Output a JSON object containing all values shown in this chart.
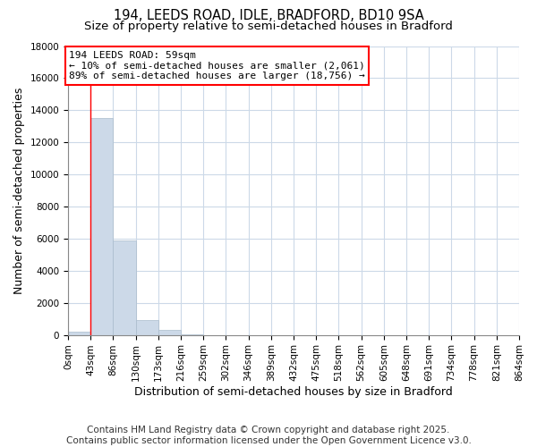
{
  "title_line1": "194, LEEDS ROAD, IDLE, BRADFORD, BD10 9SA",
  "title_line2": "Size of property relative to semi-detached houses in Bradford",
  "xlabel": "Distribution of semi-detached houses by size in Bradford",
  "ylabel": "Number of semi-detached properties",
  "bar_values": [
    200,
    13500,
    5900,
    950,
    300,
    50,
    0,
    0,
    0,
    0,
    0,
    0,
    0,
    0,
    0,
    0,
    0,
    0,
    0,
    0
  ],
  "bin_labels": [
    "0sqm",
    "43sqm",
    "86sqm",
    "130sqm",
    "173sqm",
    "216sqm",
    "259sqm",
    "302sqm",
    "346sqm",
    "389sqm",
    "432sqm",
    "475sqm",
    "518sqm",
    "562sqm",
    "605sqm",
    "648sqm",
    "691sqm",
    "734sqm",
    "778sqm",
    "821sqm",
    "864sqm"
  ],
  "bar_color": "#ccd9e8",
  "bar_edge_color": "#aabccc",
  "vline_x": 1,
  "vline_color": "red",
  "annotation_text": "194 LEEDS ROAD: 59sqm\n← 10% of semi-detached houses are smaller (2,061)\n89% of semi-detached houses are larger (18,756) →",
  "annotation_box_color": "white",
  "annotation_box_edge": "red",
  "ylim": [
    0,
    18000
  ],
  "yticks": [
    0,
    2000,
    4000,
    6000,
    8000,
    10000,
    12000,
    14000,
    16000,
    18000
  ],
  "footnote": "Contains HM Land Registry data © Crown copyright and database right 2025.\nContains public sector information licensed under the Open Government Licence v3.0.",
  "bg_color": "#ffffff",
  "grid_color": "#ccd9e8",
  "title_fontsize": 10.5,
  "subtitle_fontsize": 9.5,
  "axis_label_fontsize": 9,
  "tick_fontsize": 7.5,
  "annotation_fontsize": 8,
  "footnote_fontsize": 7.5
}
